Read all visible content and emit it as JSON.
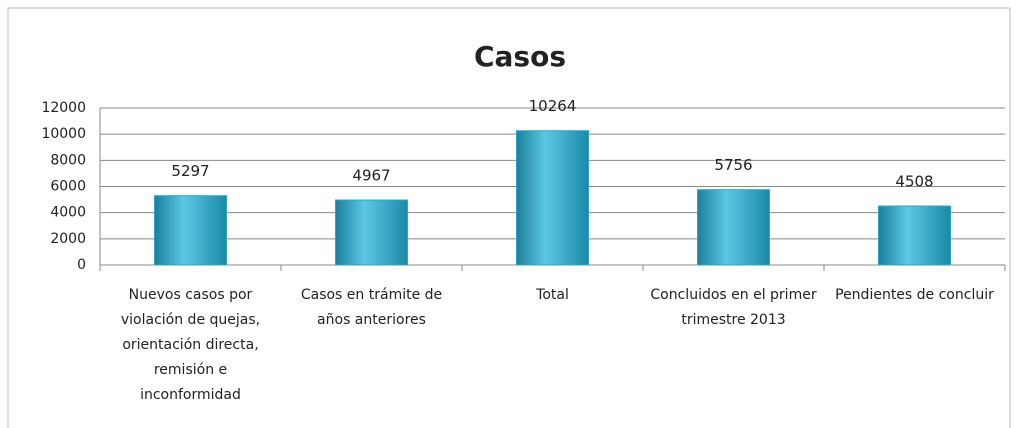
{
  "chart_data": {
    "type": "bar",
    "title": "Casos",
    "categories": [
      "Nuevos casos por violación de quejas, orientación directa, remisión e inconformidad",
      "Casos en trámite de años anteriores",
      "Total",
      "Concluidos en el primer trimestre 2013",
      "Pendientes de concluir"
    ],
    "values": [
      5297,
      4967,
      10264,
      5756,
      4508
    ],
    "color": "#2aa7c8",
    "ylim": [
      0,
      12000
    ],
    "yticks": [
      0,
      2000,
      4000,
      6000,
      8000,
      10000,
      12000
    ],
    "grid": true
  }
}
